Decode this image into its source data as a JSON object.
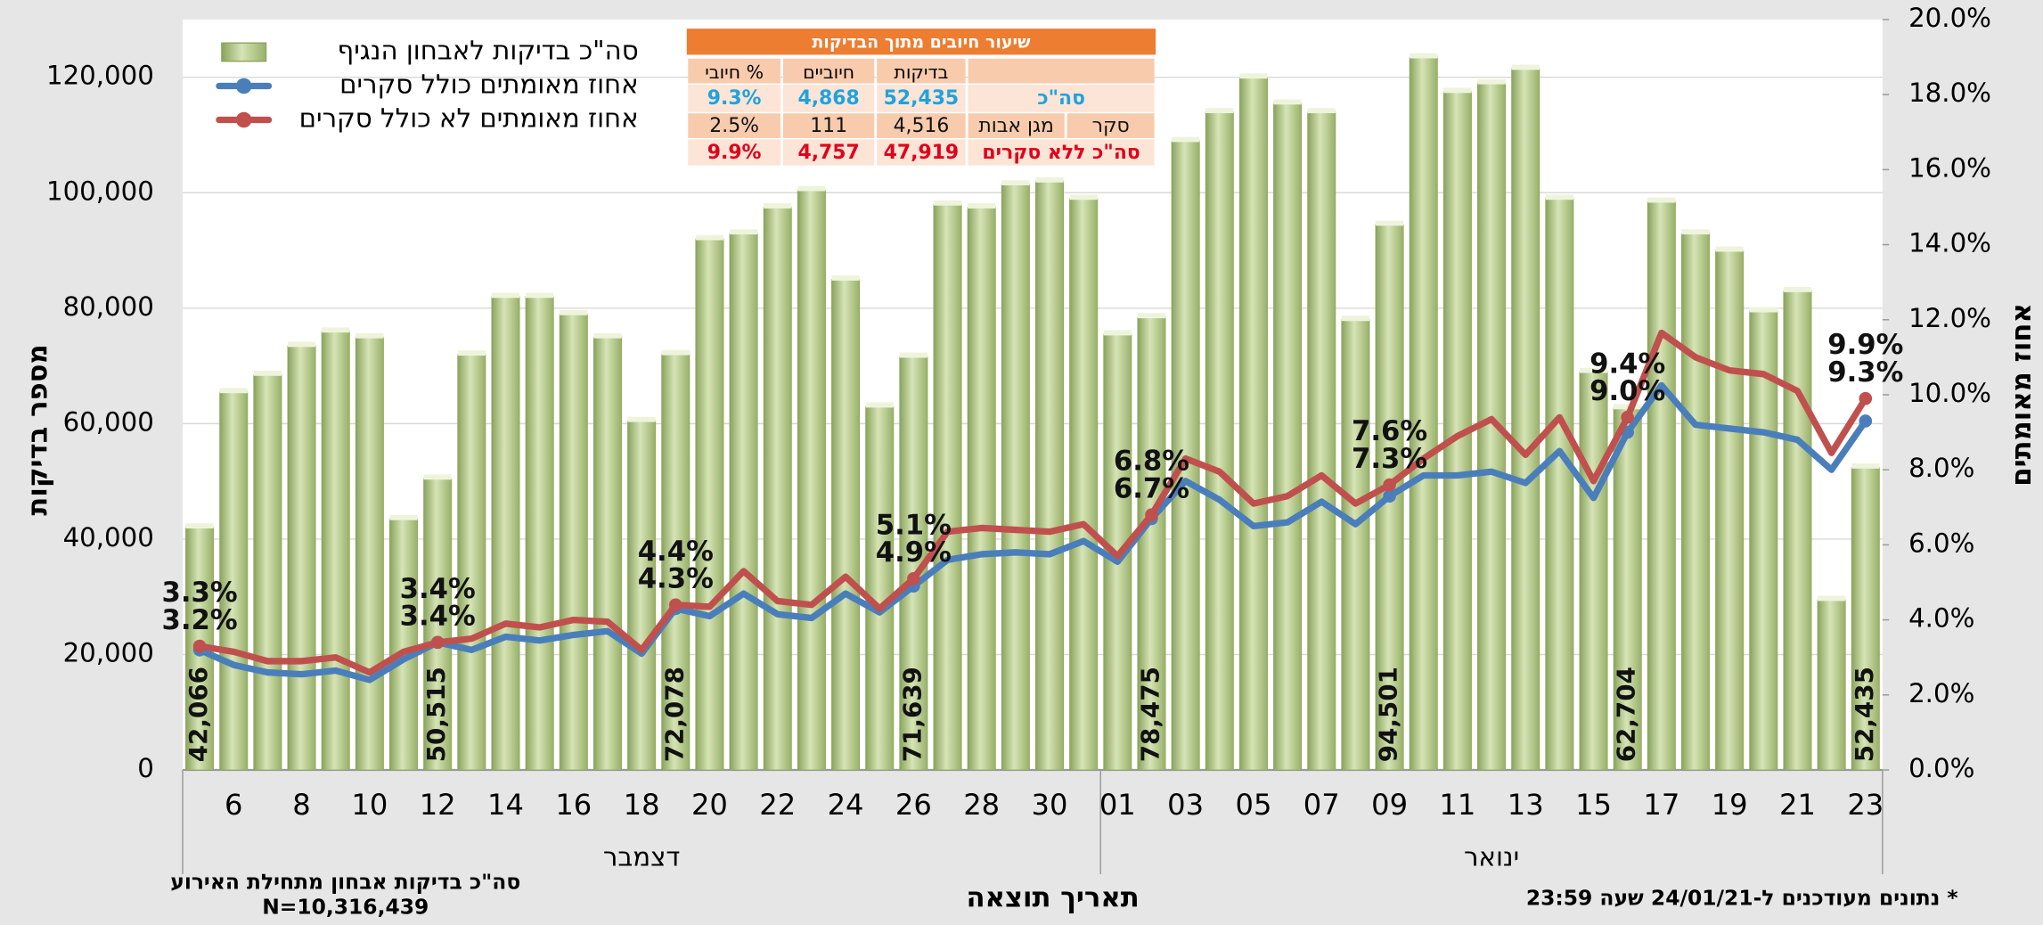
{
  "chart_data": {
    "type": "bar",
    "y_label": "מספר בדיקות",
    "y2_label": "אחוז מאומתים",
    "x_label": "תאריך תוצאה",
    "categories": [
      null,
      "6",
      null,
      "8",
      null,
      "10",
      null,
      "12",
      null,
      "14",
      null,
      "16",
      null,
      "18",
      null,
      "20",
      null,
      "22",
      null,
      "24",
      null,
      "26",
      null,
      "28",
      null,
      "30",
      null,
      "01",
      null,
      "03",
      null,
      "05",
      null,
      "07",
      null,
      "09",
      null,
      "11",
      null,
      "13",
      null,
      "15",
      null,
      "17",
      null,
      "19",
      null,
      "21",
      null,
      "23"
    ],
    "x_groups": [
      {
        "label": "דצמבר",
        "count": 27
      },
      {
        "label": "ינואר",
        "count": 23
      }
    ],
    "series": [
      {
        "name": "סה\"כ בדיקות לאבחון הנגיף",
        "type": "bar",
        "color": "#a9c27a",
        "values": [
          42066,
          65500,
          68500,
          73500,
          76000,
          75000,
          43500,
          50515,
          72000,
          82000,
          82000,
          79000,
          75000,
          60500,
          72078,
          92000,
          93000,
          97500,
          100500,
          85000,
          63000,
          71639,
          98000,
          97500,
          101500,
          102000,
          99000,
          75500,
          78475,
          109000,
          114000,
          120000,
          115500,
          114000,
          78000,
          94501,
          123500,
          117500,
          119000,
          121500,
          99000,
          69000,
          62704,
          98500,
          93000,
          90000,
          79500,
          83000,
          29500,
          52435
        ],
        "value_labels": [
          "42,066",
          null,
          null,
          null,
          null,
          null,
          null,
          "50,515",
          null,
          null,
          null,
          null,
          null,
          null,
          "72,078",
          null,
          null,
          null,
          null,
          null,
          null,
          "71,639",
          null,
          null,
          null,
          null,
          null,
          null,
          "78,475",
          null,
          null,
          null,
          null,
          null,
          null,
          "94,501",
          null,
          null,
          null,
          null,
          null,
          null,
          "62,704",
          null,
          null,
          null,
          null,
          null,
          null,
          "52,435"
        ]
      },
      {
        "name": "אחוז מאומתים כולל סקרים",
        "type": "line",
        "axis": "y2",
        "color": "#4a7ebb",
        "values": [
          3.2,
          2.8,
          2.6,
          2.55,
          2.65,
          2.4,
          2.95,
          3.4,
          3.2,
          3.55,
          3.45,
          3.6,
          3.7,
          3.1,
          4.3,
          4.1,
          4.7,
          4.15,
          4.05,
          4.7,
          4.2,
          4.9,
          5.6,
          5.75,
          5.8,
          5.75,
          6.1,
          5.55,
          6.7,
          7.7,
          7.2,
          6.5,
          6.6,
          7.15,
          6.55,
          7.3,
          7.85,
          7.85,
          7.95,
          7.65,
          8.5,
          7.25,
          9.0,
          10.25,
          9.2,
          9.1,
          9.0,
          8.8,
          8.0,
          9.3
        ],
        "value_labels": [
          "3.2%",
          null,
          null,
          null,
          null,
          null,
          null,
          "3.4%",
          null,
          null,
          null,
          null,
          null,
          null,
          "4.3%",
          null,
          null,
          null,
          null,
          null,
          null,
          "4.9%",
          null,
          null,
          null,
          null,
          null,
          null,
          "6.7%",
          null,
          null,
          null,
          null,
          null,
          null,
          "7.3%",
          null,
          null,
          null,
          null,
          null,
          null,
          "9.0%",
          null,
          null,
          null,
          null,
          null,
          null,
          "9.3%"
        ]
      },
      {
        "name": "אחוז מאומתים לא כולל סקרים",
        "type": "line",
        "axis": "y2",
        "color": "#c0504d",
        "values": [
          3.3,
          3.15,
          2.9,
          2.9,
          3.0,
          2.6,
          3.15,
          3.4,
          3.5,
          3.9,
          3.8,
          4.0,
          3.95,
          3.2,
          4.4,
          4.35,
          5.3,
          4.5,
          4.4,
          5.15,
          4.3,
          5.1,
          6.35,
          6.45,
          6.4,
          6.35,
          6.55,
          5.7,
          6.8,
          8.3,
          7.95,
          7.1,
          7.3,
          7.85,
          7.1,
          7.6,
          8.3,
          8.9,
          9.35,
          8.4,
          9.4,
          7.7,
          9.4,
          11.65,
          11.0,
          10.65,
          10.55,
          10.1,
          8.45,
          9.9
        ],
        "value_labels": [
          "3.3%",
          null,
          null,
          null,
          null,
          null,
          null,
          "3.4%",
          null,
          null,
          null,
          null,
          null,
          null,
          "4.4%",
          null,
          null,
          null,
          null,
          null,
          null,
          "5.1%",
          null,
          null,
          null,
          null,
          null,
          null,
          "6.8%",
          null,
          null,
          null,
          null,
          null,
          null,
          "7.6%",
          null,
          null,
          null,
          null,
          null,
          null,
          "9.4%",
          null,
          null,
          null,
          null,
          null,
          null,
          "9.9%"
        ]
      }
    ],
    "ylim": [
      0,
      130000
    ],
    "yticks": [
      0,
      {
        "value": 20000,
        "label": "20,000"
      },
      {
        "value": 40000,
        "label": "40,000"
      },
      {
        "value": 60000,
        "label": "60,000"
      },
      {
        "value": 80000,
        "label": "80,000"
      },
      {
        "value": 100000,
        "label": "100,000"
      },
      {
        "value": 120000,
        "label": "120,000"
      }
    ],
    "y2lim": [
      0,
      20
    ],
    "y2ticks": [
      {
        "value": 0,
        "label": "0.0%"
      },
      {
        "value": 2,
        "label": "2.0%"
      },
      {
        "value": 4,
        "label": "4.0%"
      },
      {
        "value": 6,
        "label": "6.0%"
      },
      {
        "value": 8,
        "label": "8.0%"
      },
      {
        "value": 10,
        "label": "10.0%"
      },
      {
        "value": 12,
        "label": "12.0%"
      },
      {
        "value": 14,
        "label": "14.0%"
      },
      {
        "value": 16,
        "label": "16.0%"
      },
      {
        "value": 18,
        "label": "18.0%"
      },
      {
        "value": 20,
        "label": "20.0%"
      }
    ],
    "grid": true,
    "legend": "top-left",
    "table": {
      "title": "שיעור חיובים מתוך הבדיקות",
      "header": [
        "בדיקות",
        "חיוביים",
        "% חיובי"
      ],
      "rows": [
        [
          "סה\"כ",
          "52,435",
          "4,868",
          "9.3%"
        ],
        [
          "סקר",
          "מגן אבות",
          "4,516",
          "111",
          "2.5%"
        ],
        [
          "סה\"כ ללא סקרים",
          "47,919",
          "4,757",
          "9.9%"
        ]
      ]
    },
    "notes": [
      "סה\"כ בדיקות אבחון מתחילת האירוע",
      "N=10,316,439",
      "* נתונים מעודכנים ל-24/01/21 שעה 23:59"
    ]
  }
}
